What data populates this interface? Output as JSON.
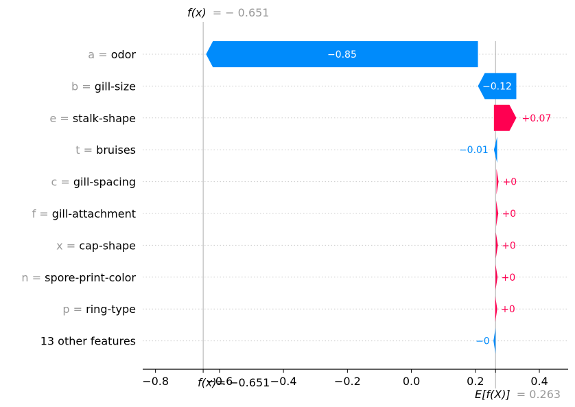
{
  "chart_data": {
    "type": "waterfall",
    "fx_label": "f(x)",
    "fx_value_text": "= − 0.651",
    "fx_value": -0.651,
    "base_label": "E[f(X)]",
    "base_value_text": "= 0.263",
    "base_value": 0.263,
    "bottom_fx_text": "f(x)",
    "bottom_fx_value_text": "= −0.651",
    "xlim": [
      -0.84,
      0.49
    ],
    "xticks": [
      -0.8,
      -0.6,
      -0.4,
      -0.2,
      0.0,
      0.2,
      0.4
    ],
    "xtick_labels": [
      "−0.8",
      "−0.6",
      "−0.4",
      "−0.2",
      "0.0",
      "0.2",
      "0.4"
    ],
    "features": [
      {
        "value": "a",
        "name": "odor",
        "shap": -0.85,
        "label": "−0.85"
      },
      {
        "value": "b",
        "name": "gill-size",
        "shap": -0.12,
        "label": "−0.12"
      },
      {
        "value": "e",
        "name": "stalk-shape",
        "shap": 0.07,
        "label": "+0.07"
      },
      {
        "value": "t",
        "name": "bruises",
        "shap": -0.01,
        "label": "−0.01"
      },
      {
        "value": "c",
        "name": "gill-spacing",
        "shap": 0.002,
        "label": "+0"
      },
      {
        "value": "f",
        "name": "gill-attachment",
        "shap": 0.001,
        "label": "+0"
      },
      {
        "value": "x",
        "name": "cap-shape",
        "shap": 0.001,
        "label": "+0"
      },
      {
        "value": "n",
        "name": "spore-print-color",
        "shap": 0.001,
        "label": "+0"
      },
      {
        "value": "p",
        "name": "ring-type",
        "shap": 0.001,
        "label": "+0"
      },
      {
        "value": "",
        "name": "13 other features",
        "shap": -0.001,
        "label": "−0"
      }
    ],
    "colors": {
      "positive": "#ff0051",
      "negative": "#008bfb",
      "grey": "#999999"
    }
  }
}
